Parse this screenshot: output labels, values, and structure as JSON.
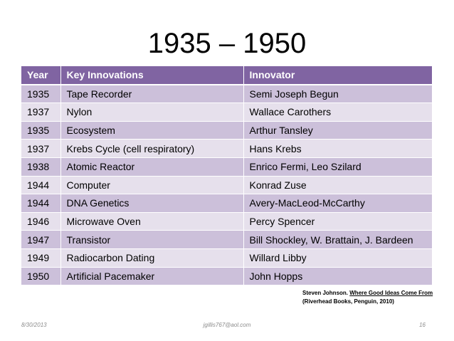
{
  "slide": {
    "title": "1935 – 1950"
  },
  "table": {
    "headers": [
      "Year",
      "Key Innovations",
      "Innovator"
    ],
    "rows": [
      [
        "1935",
        "Tape Recorder",
        "Semi Joseph Begun"
      ],
      [
        "1937",
        "Nylon",
        "Wallace Carothers"
      ],
      [
        "1935",
        "Ecosystem",
        "Arthur Tansley"
      ],
      [
        "1937",
        "Krebs Cycle (cell respiratory)",
        "Hans Krebs"
      ],
      [
        "1938",
        "Atomic Reactor",
        "Enrico Fermi, Leo Szilard"
      ],
      [
        "1944",
        "Computer",
        "Konrad Zuse"
      ],
      [
        "1944",
        "DNA Genetics",
        "Avery-MacLeod-McCarthy"
      ],
      [
        "1946",
        "Microwave Oven",
        "Percy Spencer"
      ],
      [
        "1947",
        "Transistor",
        "Bill Shockley, W. Brattain, J. Bardeen"
      ],
      [
        "1949",
        "Radiocarbon Dating",
        "Willard Libby"
      ],
      [
        "1950",
        "Artificial Pacemaker",
        "John Hopps"
      ]
    ]
  },
  "citation": {
    "author": "Steven Johnson.",
    "book": "Where Good Ideas Come From",
    "publisher": "(Riverhead Books, Penguin, 2010)"
  },
  "footer": {
    "date": "8/30/2013",
    "email": "jgillis767@aol.com",
    "page": "16"
  },
  "colors": {
    "header_bg": "#8064a2",
    "row_odd_bg": "#ccc0da",
    "row_even_bg": "#e6e0ec"
  }
}
